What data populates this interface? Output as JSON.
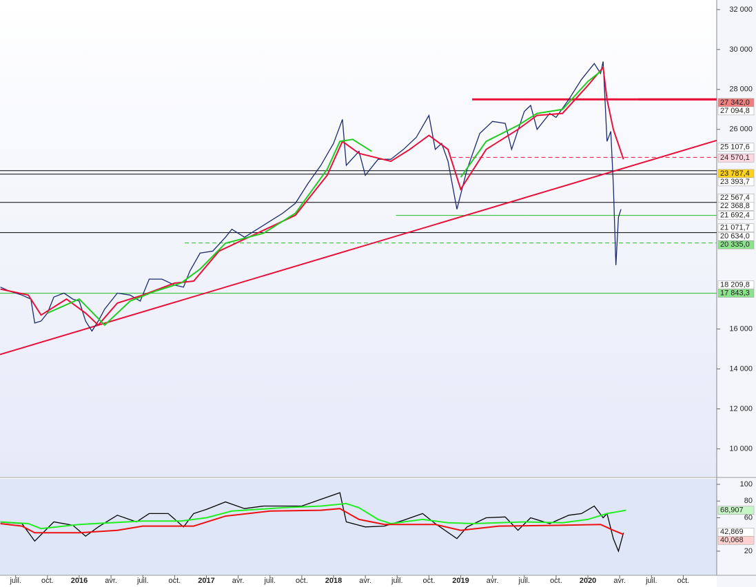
{
  "chart_data": [
    {
      "type": "price",
      "xlim": [
        2015.377,
        2021.013
      ],
      "ylim": [
        8600,
        32480
      ],
      "yticks": [
        {
          "value": 10000,
          "label": "10 000"
        },
        {
          "value": 12000,
          "label": "12 000"
        },
        {
          "value": 14000,
          "label": "14 000"
        },
        {
          "value": 16000,
          "label": "16 000"
        },
        {
          "value": 26000,
          "label": "26 000"
        },
        {
          "value": 28000,
          "label": "28 000"
        },
        {
          "value": 30000,
          "label": "30 000"
        },
        {
          "value": 32000,
          "label": "32 000"
        }
      ],
      "xticks": [
        {
          "value": 2015.5,
          "label": "juil."
        },
        {
          "value": 2015.75,
          "label": "oct."
        },
        {
          "value": 2016,
          "label": "2016"
        },
        {
          "value": 2016.25,
          "label": "avr."
        },
        {
          "value": 2016.5,
          "label": "juil."
        },
        {
          "value": 2016.75,
          "label": "oct."
        },
        {
          "value": 2017,
          "label": "2017"
        },
        {
          "value": 2017.25,
          "label": "avr."
        },
        {
          "value": 2017.5,
          "label": "juil."
        },
        {
          "value": 2017.75,
          "label": "oct."
        },
        {
          "value": 2018,
          "label": "2018"
        },
        {
          "value": 2018.25,
          "label": "avr."
        },
        {
          "value": 2018.5,
          "label": "juil."
        },
        {
          "value": 2018.75,
          "label": "oct."
        },
        {
          "value": 2019,
          "label": "2019"
        },
        {
          "value": 2019.25,
          "label": "avr."
        },
        {
          "value": 2019.5,
          "label": "juil."
        },
        {
          "value": 2019.75,
          "label": "oct."
        },
        {
          "value": 2020,
          "label": "2020"
        },
        {
          "value": 2020.25,
          "label": "avr."
        },
        {
          "value": 2020.5,
          "label": "juil."
        },
        {
          "value": 2020.75,
          "label": "oct."
        }
      ],
      "series": [
        {
          "color": "#1a2a6c",
          "x": [
            2015.38,
            2015.45,
            2015.55,
            2015.62,
            2015.65,
            2015.7,
            2015.75,
            2015.8,
            2015.88,
            2015.95,
            2016.0,
            2016.05,
            2016.1,
            2016.15,
            2016.2,
            2016.3,
            2016.4,
            2016.48,
            2016.55,
            2016.65,
            2016.75,
            2016.82,
            2016.87,
            2016.95,
            2017.05,
            2017.15,
            2017.2,
            2017.3,
            2017.4,
            2017.5,
            2017.6,
            2017.7,
            2017.8,
            2017.9,
            2018.0,
            2018.07,
            2018.1,
            2018.2,
            2018.25,
            2018.35,
            2018.45,
            2018.55,
            2018.65,
            2018.75,
            2018.8,
            2018.85,
            2018.9,
            2018.97,
            2019.05,
            2019.15,
            2019.25,
            2019.35,
            2019.4,
            2019.5,
            2019.55,
            2019.6,
            2019.7,
            2019.75,
            2019.85,
            2019.95,
            2020.05,
            2020.1,
            2020.12,
            2020.15,
            2020.18,
            2020.2,
            2020.22,
            2020.24,
            2020.26
          ],
          "values": [
            18100,
            17900,
            17700,
            17500,
            16300,
            16400,
            16800,
            17600,
            17800,
            17500,
            17400,
            16400,
            15900,
            16400,
            17000,
            17800,
            17700,
            17400,
            18500,
            18500,
            18200,
            18100,
            18900,
            19800,
            19900,
            20600,
            21000,
            20600,
            21000,
            21400,
            21800,
            22300,
            23300,
            24200,
            25300,
            26500,
            24200,
            24900,
            23700,
            24500,
            24500,
            25000,
            25600,
            26700,
            25000,
            25300,
            24400,
            22000,
            24000,
            25800,
            26400,
            26300,
            25000,
            26900,
            27200,
            26000,
            26800,
            26600,
            27500,
            28500,
            29300,
            28800,
            29400,
            25400,
            25900,
            23200,
            19200,
            21600,
            22000
          ]
        },
        {
          "color": "#e8103a",
          "x": [
            2015.38,
            2015.6,
            2015.7,
            2015.9,
            2016.05,
            2016.15,
            2016.3,
            2016.5,
            2016.75,
            2016.9,
            2017.1,
            2017.4,
            2017.7,
            2017.95,
            2018.07,
            2018.2,
            2018.45,
            2018.6,
            2018.75,
            2018.9,
            2019.0,
            2019.2,
            2019.45,
            2019.6,
            2019.8,
            2020.0,
            2020.12,
            2020.15,
            2020.2,
            2020.28
          ],
          "values": [
            18000,
            17700,
            16700,
            17500,
            16800,
            16200,
            17300,
            17700,
            18300,
            18400,
            19900,
            20800,
            21700,
            23700,
            25400,
            24800,
            24400,
            25000,
            25700,
            25000,
            23000,
            25000,
            26000,
            26700,
            26800,
            28200,
            29100,
            27500,
            26000,
            24500
          ]
        },
        {
          "color": "#22cc22",
          "x": [
            2015.75,
            2016.0,
            2016.2,
            2016.4,
            2016.6,
            2016.8,
            2016.95,
            2017.15,
            2017.45,
            2017.7,
            2017.95,
            2018.05,
            2018.15,
            2018.3,
            null,
            2019.0,
            2019.2,
            2019.45,
            2019.6,
            2019.8,
            2020.0,
            2020.1
          ],
          "values": [
            16800,
            17500,
            16200,
            17400,
            17900,
            18300,
            19000,
            20300,
            20800,
            21800,
            24000,
            25400,
            25500,
            24900,
            null,
            23600,
            25400,
            26200,
            26800,
            27000,
            28400,
            28900
          ]
        }
      ],
      "trendline": {
        "color": "#e8103a",
        "x": [
          2015.377,
          2021.013
        ],
        "values": [
          14724,
          25448
        ]
      },
      "levels": [
        {
          "value": 27500,
          "x0": 2020.4,
          "color": "#e8103a",
          "style": "thick"
        },
        {
          "value": 27500,
          "x0": 2019.09,
          "color": "#e8103a",
          "style": "thick"
        },
        {
          "value": 24600,
          "x0": 2018.93,
          "color": "#e8103a",
          "style": "dashed"
        },
        {
          "value": 23931,
          "x0": 2015.377,
          "color": "#000000",
          "style": "solid"
        },
        {
          "value": 23759,
          "x0": 2015.377,
          "color": "#000000",
          "style": "solid"
        },
        {
          "value": 22345,
          "x0": 2015.377,
          "color": "#000000",
          "style": "solid"
        },
        {
          "value": 20828,
          "x0": 2015.377,
          "color": "#000000",
          "style": "solid"
        },
        {
          "value": 21692,
          "x0": 2018.49,
          "color": "#22bb22",
          "style": "solid"
        },
        {
          "value": 20310,
          "x0": 2016.83,
          "color": "#22bb22",
          "style": "dashed"
        },
        {
          "value": 17793,
          "x0": 2015.377,
          "color": "#22bb22",
          "style": "solid"
        }
      ],
      "price_labels": [
        {
          "value": 27342.0,
          "label": "27 342,0",
          "color": "#f08080"
        },
        {
          "value": 27094.8,
          "label": "27 094,8",
          "color": "#ffffff"
        },
        {
          "value": 25107.6,
          "label": "25 107,6",
          "color": "#ffffff"
        },
        {
          "value": 24570.1,
          "label": "24 570,1",
          "color": "#ffd8e0"
        },
        {
          "value": 23787.4,
          "label": "23 787,4",
          "color": "#ffd21e"
        },
        {
          "value": 23393.7,
          "label": "23 393,7",
          "color": "#ffffff"
        },
        {
          "value": 22567.4,
          "label": "22 567,4",
          "color": "#ffffff"
        },
        {
          "value": 22368.8,
          "label": "22 368,8",
          "color": "#ffffff"
        },
        {
          "value": 21692.4,
          "label": "21 692,4",
          "color": "#ffffff"
        },
        {
          "value": 21071.7,
          "label": "21 071,7",
          "color": "#ffffff"
        },
        {
          "value": 20634.0,
          "label": "20 634,0",
          "color": "#ffffff"
        },
        {
          "value": 20335.0,
          "label": "20 335,0",
          "color": "#8de38d"
        },
        {
          "value": 18209.8,
          "label": "18 209,8",
          "color": "#ffffff"
        },
        {
          "value": 17843.3,
          "label": "17 843,3",
          "color": "#8de38d"
        }
      ]
    },
    {
      "type": "oscillator",
      "xlim": [
        2015.377,
        2021.013
      ],
      "ylim": [
        -8.9,
        106.6
      ],
      "yticks": [
        20,
        60,
        80,
        100
      ],
      "series": [
        {
          "color": "#000000",
          "x": [
            2015.38,
            2015.55,
            2015.65,
            2015.8,
            2015.95,
            2016.05,
            2016.15,
            2016.3,
            2016.45,
            2016.55,
            2016.7,
            2016.82,
            2016.9,
            2017.0,
            2017.15,
            2017.3,
            2017.45,
            2017.6,
            2017.75,
            2017.9,
            2018.05,
            2018.1,
            2018.25,
            2018.4,
            2018.55,
            2018.7,
            2018.8,
            2018.97,
            2019.05,
            2019.2,
            2019.35,
            2019.45,
            2019.55,
            2019.7,
            2019.85,
            2019.95,
            2020.05,
            2020.12,
            2020.15,
            2020.2,
            2020.24,
            2020.28
          ],
          "values": [
            54.6,
            53,
            32,
            55,
            51,
            38,
            49,
            63,
            55,
            65,
            65,
            49,
            65,
            70,
            79,
            71,
            74,
            74,
            74,
            82,
            90,
            55,
            49,
            50,
            57,
            65,
            53,
            35,
            49,
            60,
            61,
            45,
            60,
            53,
            63,
            65,
            74,
            60,
            65,
            35,
            20,
            42
          ]
        },
        {
          "color": "#22ee22",
          "x": [
            2015.38,
            2015.6,
            2015.7,
            2016.0,
            2016.5,
            2016.8,
            2017.0,
            2017.2,
            2017.6,
            2017.9,
            2018.1,
            2018.2,
            2018.35,
            2018.45,
            2018.7,
            2018.9,
            2019.1,
            2019.5,
            2019.8,
            2020.0,
            2020.15,
            2020.3
          ],
          "values": [
            55,
            53,
            47,
            52,
            56,
            56,
            60,
            68,
            72,
            74,
            77,
            72,
            58,
            53,
            58,
            54,
            53,
            55,
            54,
            58,
            65,
            69
          ]
        },
        {
          "color": "#ee1010",
          "x": [
            2015.38,
            2015.55,
            2015.65,
            2016.0,
            2016.3,
            2016.5,
            2016.9,
            2017.15,
            2017.5,
            2017.9,
            2018.05,
            2018.2,
            2018.4,
            2018.8,
            2019.0,
            2019.3,
            2019.8,
            2020.1,
            2020.2,
            2020.28
          ],
          "values": [
            53,
            50,
            42,
            42,
            45,
            50,
            50,
            62,
            68,
            69,
            71,
            58,
            52,
            52,
            45,
            50,
            51,
            52,
            45,
            40
          ]
        }
      ],
      "value_labels": [
        {
          "value": 68.907,
          "label": "68,907",
          "color": "#c8f5c8"
        },
        {
          "value": 42.869,
          "label": "42,869",
          "color": "#ffffff"
        },
        {
          "value": 40.068,
          "label": "40,068",
          "color": "#ffd0d0"
        }
      ]
    }
  ]
}
